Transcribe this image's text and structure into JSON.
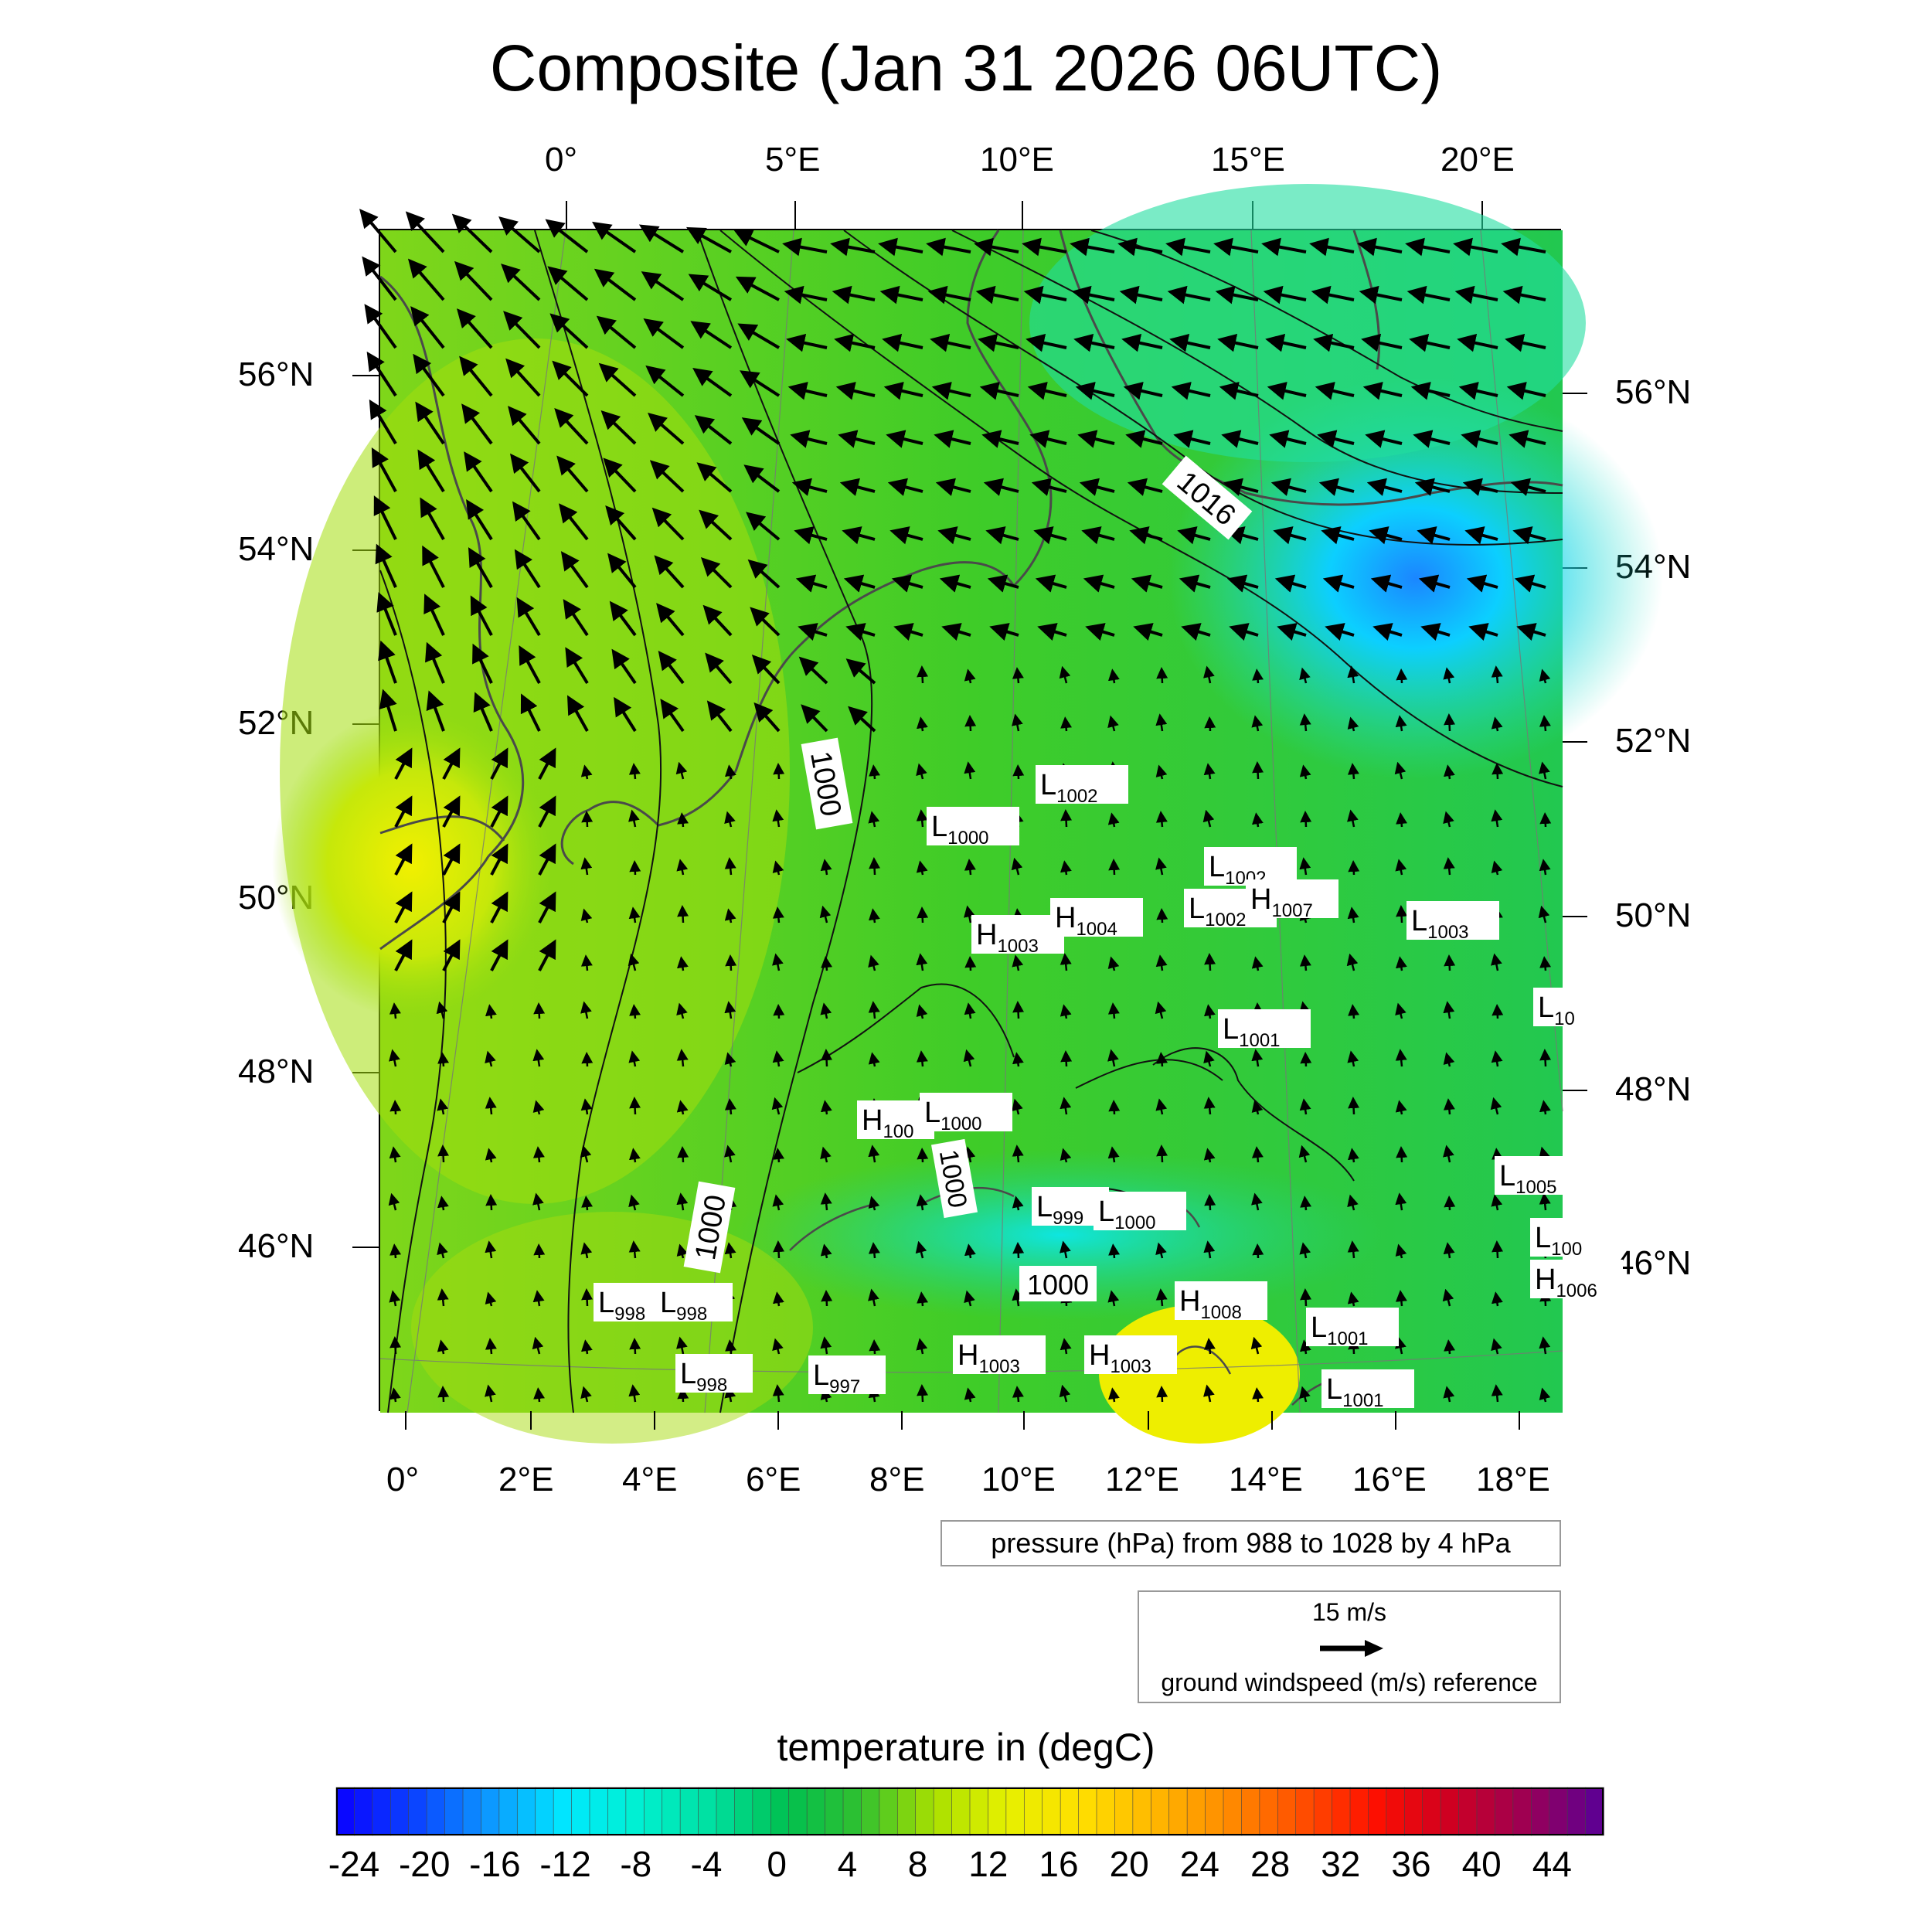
{
  "title": "Composite (Jan 31 2026 06UTC)",
  "top_lon_labels": [
    "0°",
    "5°E",
    "10°E",
    "15°E",
    "20°E"
  ],
  "bottom_lon_labels": [
    "0°",
    "2°E",
    "4°E",
    "6°E",
    "8°E",
    "10°E",
    "12°E",
    "14°E",
    "16°E",
    "18°E"
  ],
  "left_lat_labels": [
    "56°N",
    "54°N",
    "52°N",
    "50°N",
    "48°N",
    "46°N"
  ],
  "right_lat_labels": [
    "56°N",
    "54°N",
    "52°N",
    "50°N",
    "48°N",
    "46°N"
  ],
  "pressure_note": "pressure (hPa) from 988 to 1028 by 4 hPa",
  "wind_reference": {
    "speed": "15 m/s",
    "label": "ground windspeed (m/s) reference"
  },
  "colorbar": {
    "title": "temperature in (degC)",
    "ticks": [
      "-24",
      "-20",
      "-16",
      "-12",
      "-8",
      "-4",
      "0",
      "4",
      "8",
      "12",
      "16",
      "20",
      "24",
      "28",
      "32",
      "36",
      "40",
      "44"
    ],
    "colors": [
      "#0a08ff",
      "#0b46ff",
      "#0c9bff",
      "#00e8ff",
      "#00f0d0",
      "#00e0a0",
      "#00c050",
      "#30c030",
      "#a8e000",
      "#e6f000",
      "#ffe000",
      "#ffb800",
      "#ff8c00",
      "#ff5000",
      "#ff1000",
      "#d00020",
      "#a00050",
      "#600090"
    ]
  },
  "pressure_centers": [
    {
      "type": "L",
      "value": "1002"
    },
    {
      "type": "L",
      "value": "1000"
    },
    {
      "type": "L",
      "value": "1002"
    },
    {
      "type": "L",
      "value": "1002"
    },
    {
      "type": "H",
      "value": "1007"
    },
    {
      "type": "L",
      "value": "1003"
    },
    {
      "type": "H",
      "value": "1003"
    },
    {
      "type": "H",
      "value": "1004"
    },
    {
      "type": "L",
      "value": "10"
    },
    {
      "type": "L",
      "value": "1001"
    },
    {
      "type": "H",
      "value": "100"
    },
    {
      "type": "L",
      "value": "1000"
    },
    {
      "type": "L",
      "value": "1005"
    },
    {
      "type": "L",
      "value": "999"
    },
    {
      "type": "L",
      "value": "1000"
    },
    {
      "type": "L",
      "value": "100"
    },
    {
      "type": "H",
      "value": "1006"
    },
    {
      "type": "L",
      "value": "998"
    },
    {
      "type": "L",
      "value": "998"
    },
    {
      "type": "H",
      "value": "1008"
    },
    {
      "type": "L",
      "value": "1001"
    },
    {
      "type": "L",
      "value": "998"
    },
    {
      "type": "L",
      "value": "997"
    },
    {
      "type": "H",
      "value": "1003"
    },
    {
      "type": "H",
      "value": "1003"
    },
    {
      "type": "L",
      "value": "1001"
    }
  ],
  "isobar_labels": [
    "1016",
    "1000",
    "1000",
    "1000",
    "1000"
  ]
}
